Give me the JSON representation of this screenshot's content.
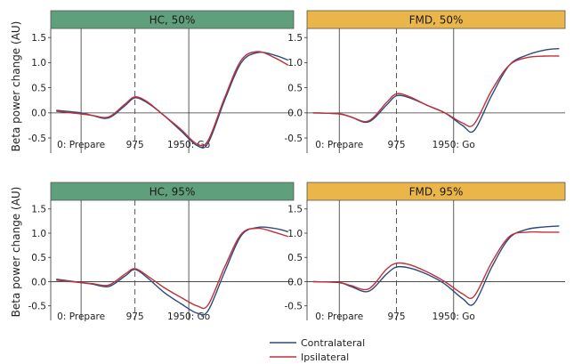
{
  "figure": {
    "ylabel": "Beta power change (AU)",
    "legend": {
      "placement": "bottom-center",
      "entries": [
        {
          "label": "Contralateral",
          "color": "#2e4a7a"
        },
        {
          "label": "Ipsilateral",
          "color": "#c0303a"
        }
      ]
    },
    "strip_colors": {
      "HC": "#5f9f7c",
      "FMD": "#eab64a"
    },
    "reference_lines": {
      "solid_x": [
        0,
        1950
      ],
      "dashed_x": [
        975
      ],
      "horizontal_y": 0
    }
  },
  "chart_data": [
    {
      "type": "line",
      "title": "HC, 50%",
      "group": "HC",
      "xlim": [
        -550,
        3850
      ],
      "ylim": [
        -0.8,
        1.68
      ],
      "xticks": [
        0,
        975,
        1950
      ],
      "xtick_labels": [
        "0: Prepare",
        "975",
        "1950: Go"
      ],
      "yticks": [
        -0.5,
        0,
        0.5,
        1.0,
        1.5
      ],
      "ytick_labels": [
        "-0.5",
        "0.0",
        "0.5",
        "1.0",
        "1.5"
      ],
      "x": [
        -450,
        0,
        200,
        500,
        800,
        975,
        1200,
        1500,
        1800,
        2100,
        2300,
        2600,
        2900,
        3200,
        3500,
        3750
      ],
      "series": [
        {
          "name": "Contralateral",
          "values": [
            0.05,
            0.0,
            -0.05,
            -0.1,
            0.15,
            0.3,
            0.2,
            -0.05,
            -0.35,
            -0.65,
            -0.6,
            0.25,
            1.0,
            1.2,
            1.15,
            1.05
          ]
        },
        {
          "name": "Ipsilateral",
          "values": [
            0.03,
            -0.02,
            -0.05,
            -0.08,
            0.18,
            0.32,
            0.22,
            -0.05,
            -0.32,
            -0.62,
            -0.55,
            0.3,
            1.05,
            1.22,
            1.1,
            0.95
          ]
        }
      ]
    },
    {
      "type": "line",
      "title": "FMD, 50%",
      "group": "FMD",
      "xlim": [
        -550,
        3850
      ],
      "ylim": [
        -0.8,
        1.68
      ],
      "xticks": [
        0,
        975,
        1950
      ],
      "xtick_labels": [
        "0: Prepare",
        "975",
        "1950: Go"
      ],
      "yticks": [
        -0.5,
        0,
        0.5,
        1.0,
        1.5
      ],
      "ytick_labels": [
        "-0.5",
        "0.0",
        "0.5",
        "1.0",
        "1.5"
      ],
      "x": [
        -450,
        0,
        200,
        500,
        800,
        975,
        1200,
        1500,
        1800,
        2100,
        2300,
        2600,
        2900,
        3200,
        3500,
        3750
      ],
      "series": [
        {
          "name": "Contralateral",
          "values": [
            0.0,
            -0.02,
            -0.08,
            -0.18,
            0.15,
            0.34,
            0.3,
            0.15,
            0.0,
            -0.25,
            -0.35,
            0.35,
            0.95,
            1.15,
            1.25,
            1.28
          ]
        },
        {
          "name": "Ipsilateral",
          "values": [
            0.0,
            -0.02,
            -0.08,
            -0.16,
            0.2,
            0.38,
            0.32,
            0.15,
            0.0,
            -0.2,
            -0.22,
            0.45,
            0.95,
            1.1,
            1.13,
            1.13
          ]
        }
      ]
    },
    {
      "type": "line",
      "title": "HC, 95%",
      "group": "HC",
      "xlim": [
        -550,
        3850
      ],
      "ylim": [
        -0.8,
        1.68
      ],
      "xticks": [
        0,
        975,
        1950
      ],
      "xtick_labels": [
        "0: Prepare",
        "975",
        "1950: Go"
      ],
      "yticks": [
        -0.5,
        0,
        0.5,
        1.0,
        1.5
      ],
      "ytick_labels": [
        "-0.5",
        "0.0",
        "0.5",
        "1.0",
        "1.5"
      ],
      "x": [
        -450,
        0,
        200,
        500,
        800,
        975,
        1200,
        1500,
        1800,
        2100,
        2300,
        2600,
        2900,
        3200,
        3500,
        3750
      ],
      "series": [
        {
          "name": "Contralateral",
          "values": [
            0.05,
            -0.02,
            -0.05,
            -0.1,
            0.12,
            0.25,
            0.08,
            -0.22,
            -0.45,
            -0.65,
            -0.6,
            0.2,
            0.95,
            1.12,
            1.1,
            1.03
          ]
        },
        {
          "name": "Ipsilateral",
          "values": [
            0.03,
            -0.02,
            -0.04,
            -0.07,
            0.16,
            0.27,
            0.12,
            -0.12,
            -0.32,
            -0.5,
            -0.48,
            0.3,
            0.98,
            1.1,
            1.02,
            0.93
          ]
        }
      ]
    },
    {
      "type": "line",
      "title": "FMD, 95%",
      "group": "FMD",
      "xlim": [
        -550,
        3850
      ],
      "ylim": [
        -0.8,
        1.68
      ],
      "xticks": [
        0,
        975,
        1950
      ],
      "xtick_labels": [
        "0: Prepare",
        "975",
        "1950: Go"
      ],
      "yticks": [
        -0.5,
        0,
        0.5,
        1.0,
        1.5
      ],
      "ytick_labels": [
        "-0.5",
        "0.0",
        "0.5",
        "1.0",
        "1.5"
      ],
      "x": [
        -450,
        0,
        200,
        500,
        800,
        975,
        1200,
        1500,
        1800,
        2100,
        2300,
        2600,
        2900,
        3200,
        3500,
        3750
      ],
      "series": [
        {
          "name": "Contralateral",
          "values": [
            0.0,
            -0.02,
            -0.1,
            -0.2,
            0.15,
            0.3,
            0.28,
            0.15,
            -0.05,
            -0.35,
            -0.45,
            0.3,
            0.9,
            1.08,
            1.13,
            1.15
          ]
        },
        {
          "name": "Ipsilateral",
          "values": [
            0.0,
            -0.02,
            -0.08,
            -0.15,
            0.25,
            0.38,
            0.35,
            0.2,
            0.0,
            -0.25,
            -0.3,
            0.4,
            0.93,
            1.02,
            1.02,
            1.02
          ]
        }
      ]
    }
  ]
}
